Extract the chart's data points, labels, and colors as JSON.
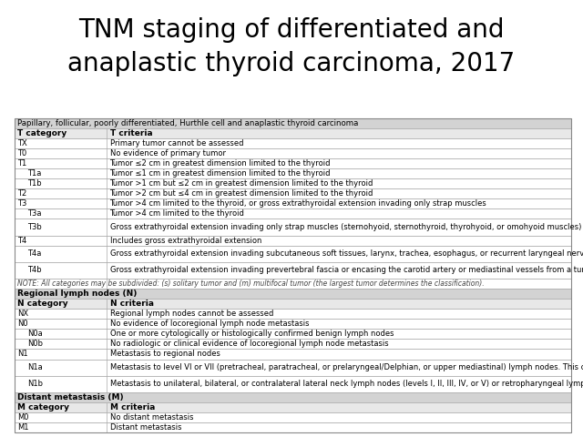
{
  "title": "TNM staging of differentiated and\nanaplastic thyroid carcinoma, 2017",
  "title_fontsize": 20,
  "bg_color": "#ffffff",
  "sections": [
    {
      "section_title": "Papillary, follicular, poorly differentiated, Hurthle cell and anaplastic thyroid carcinoma",
      "col_headers": [
        "T category",
        "T criteria"
      ],
      "rows": [
        [
          "TX",
          "Primary tumor cannot be assessed",
          false,
          false
        ],
        [
          "T0",
          "No evidence of primary tumor",
          false,
          false
        ],
        [
          "T1",
          "Tumor ≤2 cm in greatest dimension limited to the thyroid",
          false,
          false
        ],
        [
          "T1a",
          "Tumor ≤1 cm in greatest dimension limited to the thyroid",
          true,
          false
        ],
        [
          "T1b",
          "Tumor >1 cm but ≤2 cm in greatest dimension limited to the thyroid",
          true,
          false
        ],
        [
          "T2",
          "Tumor >2 cm but ≤4 cm in greatest dimension limited to the thyroid",
          false,
          false
        ],
        [
          "T3",
          "Tumor >4 cm limited to the thyroid, or gross extrathyroidal extension invading only strap muscles",
          false,
          false
        ],
        [
          "T3a",
          "Tumor >4 cm limited to the thyroid",
          true,
          false
        ],
        [
          "T3b",
          "Gross extrathyroidal extension invading only strap muscles (sternohyoid, sternothyroid, thyrohyoid, or omohyoid muscles) from a tumor of any size",
          true,
          true
        ],
        [
          "T4",
          "Includes gross extrathyroidal extension",
          false,
          false
        ],
        [
          "T4a",
          "Gross extrathyroidal extension invading subcutaneous soft tissues, larynx, trachea, esophagus, or recurrent laryngeal nerve from a tumor of any size",
          true,
          true
        ],
        [
          "T4b",
          "Gross extrathyroidal extension invading prevertebral fascia or encasing the carotid artery or mediastinal vessels from a tumor of any size",
          true,
          true
        ],
        [
          "NOTE:",
          "All categories may be subdivided: (s) solitary tumor and (m) multifocal tumor (the largest tumor determines the classification).",
          false,
          false
        ]
      ]
    },
    {
      "section_title": "Regional lymph nodes (N)",
      "col_headers": [
        "N category",
        "N criteria"
      ],
      "rows": [
        [
          "NX",
          "Regional lymph nodes cannot be assessed",
          false,
          false
        ],
        [
          "N0",
          "No evidence of locoregional lymph node metastasis",
          false,
          false
        ],
        [
          "N0a",
          "One or more cytologically or histologically confirmed benign lymph nodes",
          true,
          false
        ],
        [
          "N0b",
          "No radiologic or clinical evidence of locoregional lymph node metastasis",
          true,
          false
        ],
        [
          "N1",
          "Metastasis to regional nodes",
          false,
          false
        ],
        [
          "N1a",
          "Metastasis to level VI or VII (pretracheal, paratracheal, or prelaryngeal/Delphian, or upper mediastinal) lymph nodes. This can be unilateral or bilateral disease.",
          true,
          true
        ],
        [
          "N1b",
          "Metastasis to unilateral, bilateral, or contralateral lateral neck lymph nodes (levels I, II, III, IV, or V) or retropharyngeal lymph nodes",
          true,
          true
        ]
      ]
    },
    {
      "section_title": "Distant metastasis (M)",
      "col_headers": [
        "M category",
        "M criteria"
      ],
      "rows": [
        [
          "M0",
          "No distant metastasis",
          false,
          false
        ],
        [
          "M1",
          "Distant metastasis",
          false,
          false
        ]
      ]
    }
  ]
}
